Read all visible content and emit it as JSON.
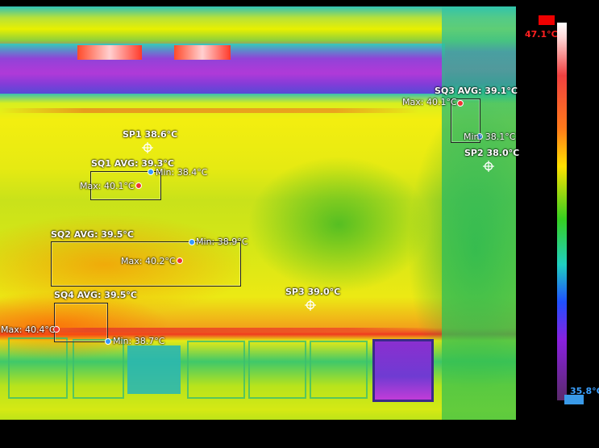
{
  "scale": {
    "max_label": "47.1°C",
    "min_label": "35.8°C",
    "max_color": "#ff2020",
    "min_color": "#3aa0ff"
  },
  "spots": [
    {
      "id": "SP1",
      "label": "SP1 38.6°C"
    },
    {
      "id": "SP2",
      "label": "SP2 38.0°C"
    },
    {
      "id": "SP3",
      "label": "SP3 39.0°C"
    }
  ],
  "areas": [
    {
      "id": "SQ1",
      "avg_label": "SQ1 AVG: 39.3°C",
      "max_label": "Max: 40.1°C",
      "min_label": "Min: 38.4°C"
    },
    {
      "id": "SQ2",
      "avg_label": "SQ2 AVG: 39.5°C",
      "max_label": "Max: 40.2°C",
      "min_label": "Min: 38.9°C"
    },
    {
      "id": "SQ3",
      "avg_label": "SQ3 AVG: 39.1°C",
      "max_label": "Max: 40.1°C",
      "min_label": "Min: 38.1°C"
    },
    {
      "id": "SQ4",
      "avg_label": "SQ4 AVG: 39.5°C",
      "max_label": "Max: 40.4°C",
      "min_label": "Min: 38.7°C"
    }
  ],
  "icons": {
    "crosshair": "crosshair-icon",
    "max_marker": "max-temp-dot",
    "min_marker": "min-temp-dot"
  }
}
